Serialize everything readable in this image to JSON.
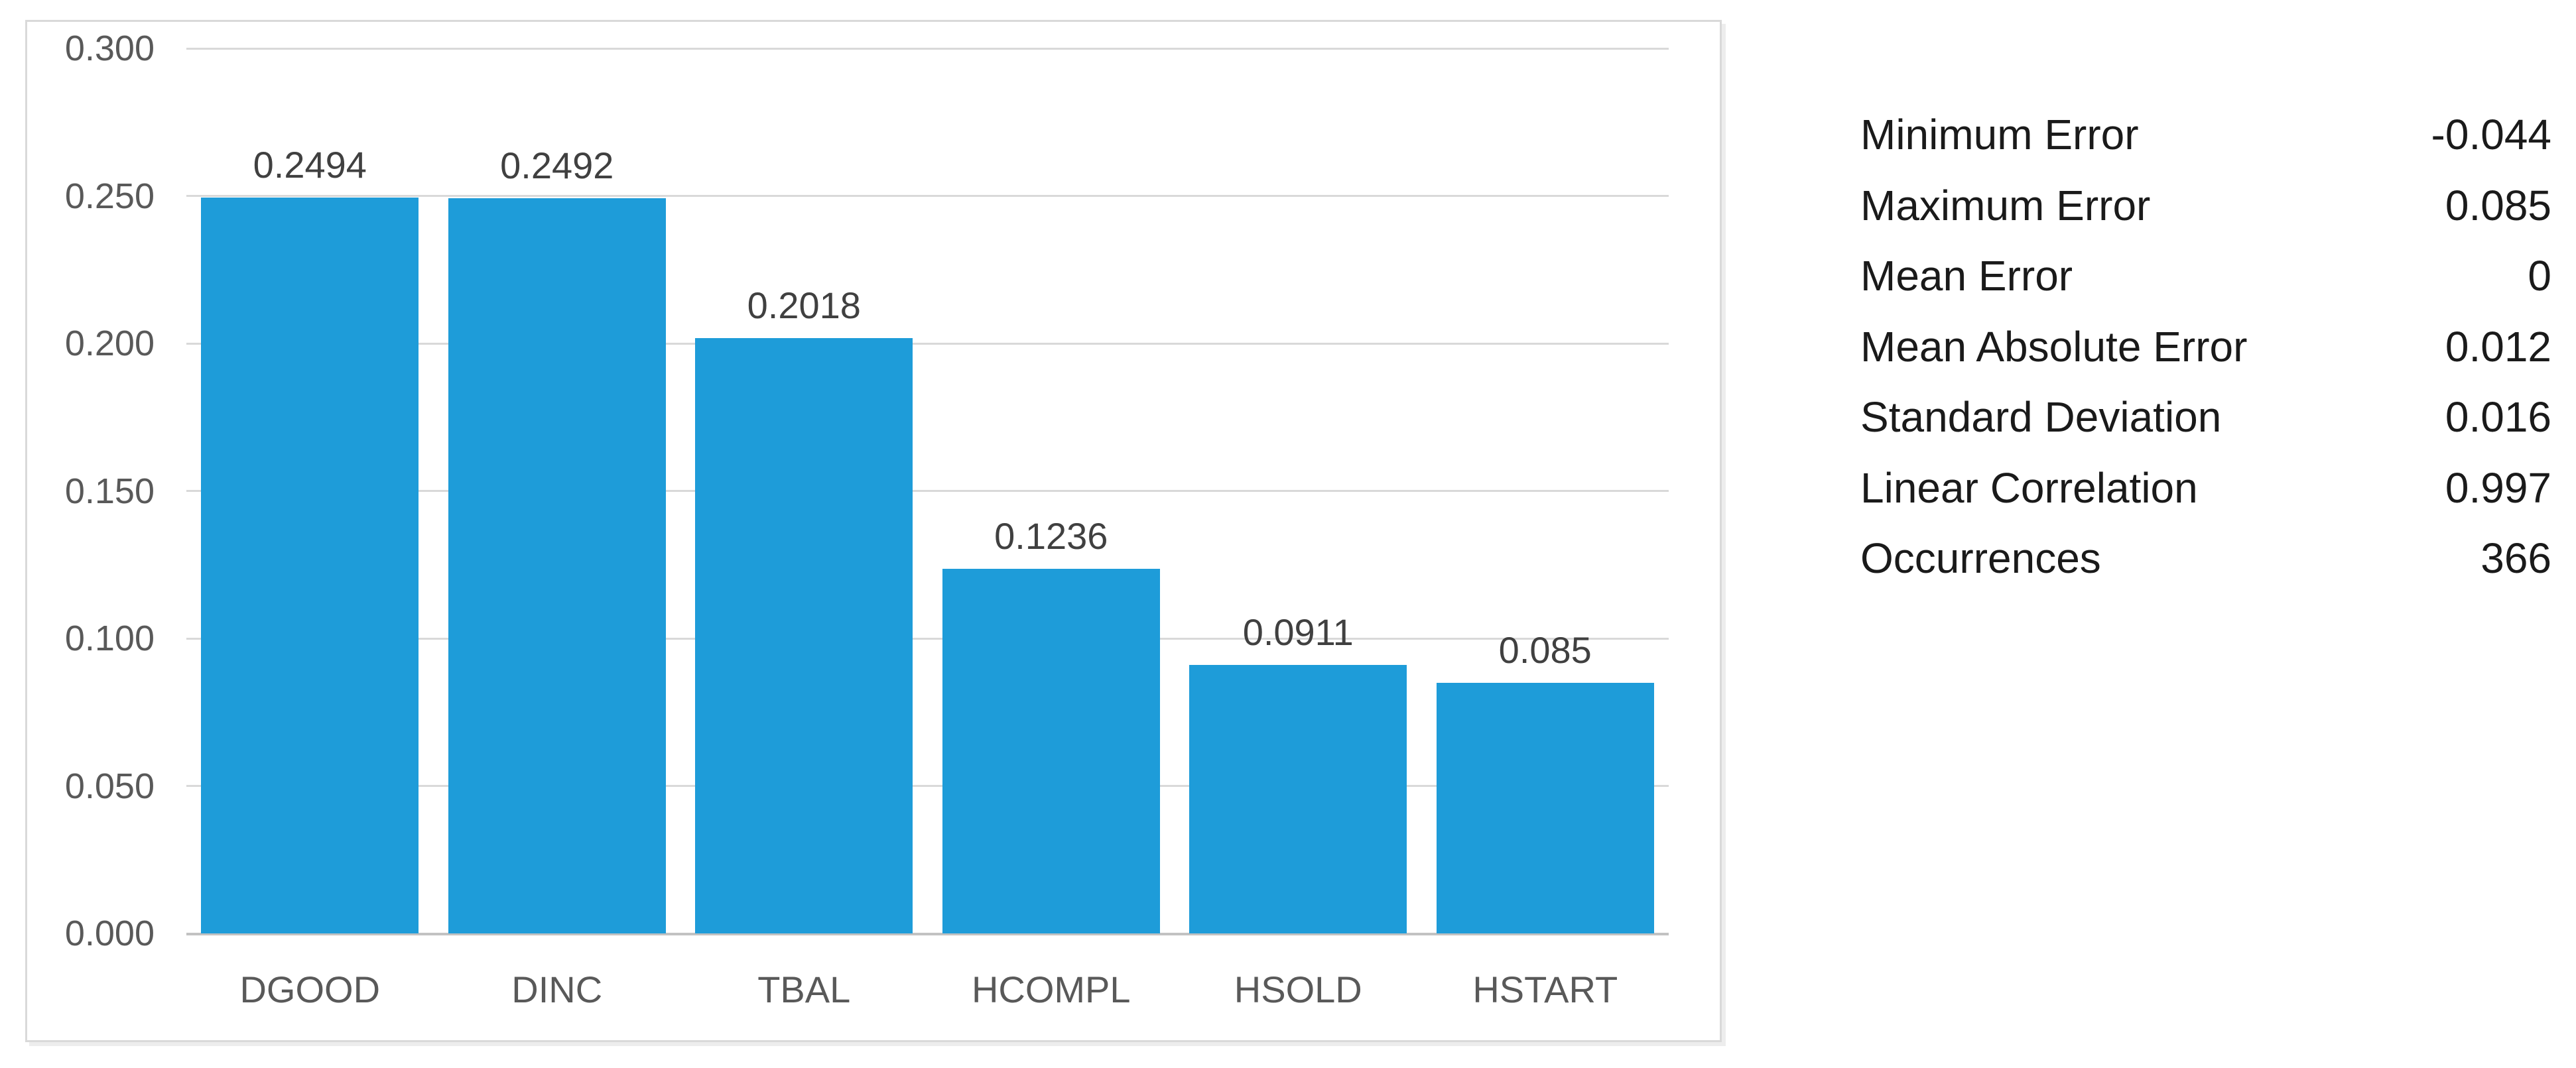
{
  "chart_data": {
    "type": "bar",
    "title": "",
    "xlabel": "",
    "ylabel": "",
    "categories": [
      "DGOOD",
      "DINC",
      "TBAL",
      "HCOMPL",
      "HSOLD",
      "HSTART"
    ],
    "values": [
      0.2494,
      0.2492,
      0.2018,
      0.1236,
      0.0911,
      0.085
    ],
    "data_labels": [
      "0.2494",
      "0.2492",
      "0.2018",
      "0.1236",
      "0.0911",
      "0.085"
    ],
    "ylim": [
      0,
      0.3
    ],
    "ytick_values": [
      0.3,
      0.25,
      0.2,
      0.15,
      0.1,
      0.05,
      0
    ],
    "ytick_labels": [
      "0.300",
      "0.250",
      "0.200",
      "0.150",
      "0.100",
      "0.050",
      "0.000"
    ],
    "grid": true,
    "legend": "none",
    "bar_gap_fraction": 0.12
  },
  "stats_table": {
    "rows": [
      {
        "label": "Minimum Error",
        "value": "-0.044"
      },
      {
        "label": "Maximum Error",
        "value": "0.085"
      },
      {
        "label": "Mean Error",
        "value": "0"
      },
      {
        "label": "Mean Absolute Error",
        "value": "0.012"
      },
      {
        "label": "Standard Deviation",
        "value": "0.016"
      },
      {
        "label": "Linear Correlation",
        "value": "0.997"
      },
      {
        "label": "Occurrences",
        "value": "366"
      }
    ]
  },
  "colors": {
    "bar": "#1E9CD9",
    "gridline": "#D9D9D9",
    "axis_line": "#C2C2C2",
    "chart_border": "#D9D9D9",
    "tick_text": "#595959",
    "data_label_text": "#404040",
    "cat_text": "#595959",
    "stats_text": "#1A1A1A"
  }
}
